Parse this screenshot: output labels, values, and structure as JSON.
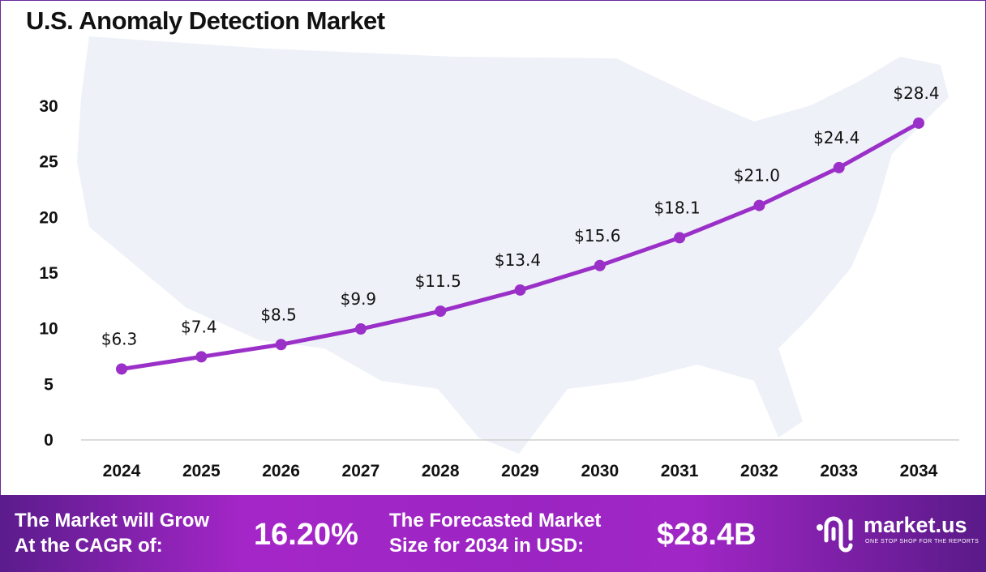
{
  "title": "U.S. Anomaly Detection Market",
  "chart_data": {
    "type": "line",
    "title": "U.S. Anomaly Detection Market",
    "categories": [
      "2024",
      "2025",
      "2026",
      "2027",
      "2028",
      "2029",
      "2030",
      "2031",
      "2032",
      "2033",
      "2034"
    ],
    "values": [
      6.3,
      7.4,
      8.5,
      9.9,
      11.5,
      13.4,
      15.6,
      18.1,
      21.0,
      24.4,
      28.4
    ],
    "data_labels": [
      "$6.3",
      "$7.4",
      "$8.5",
      "$9.9",
      "$11.5",
      "$13.4",
      "$15.6",
      "$18.1",
      "$21.0",
      "$24.4",
      "$28.4"
    ],
    "yticks": [
      0,
      5,
      10,
      15,
      20,
      25,
      30
    ],
    "ylim": [
      0,
      30
    ],
    "grid": false,
    "legend": "none",
    "line_color": "#9b30c8"
  },
  "footer": {
    "cagr_label_1": "The Market will Grow",
    "cagr_label_2": "At the CAGR of:",
    "cagr_value": "16.20%",
    "size_label_1": "The Forecasted Market",
    "size_label_2": "Size for 2034 in USD:",
    "size_value": "$28.4B",
    "logo_text": "market.us",
    "logo_tagline": "ONE STOP SHOP FOR THE REPORTS"
  }
}
